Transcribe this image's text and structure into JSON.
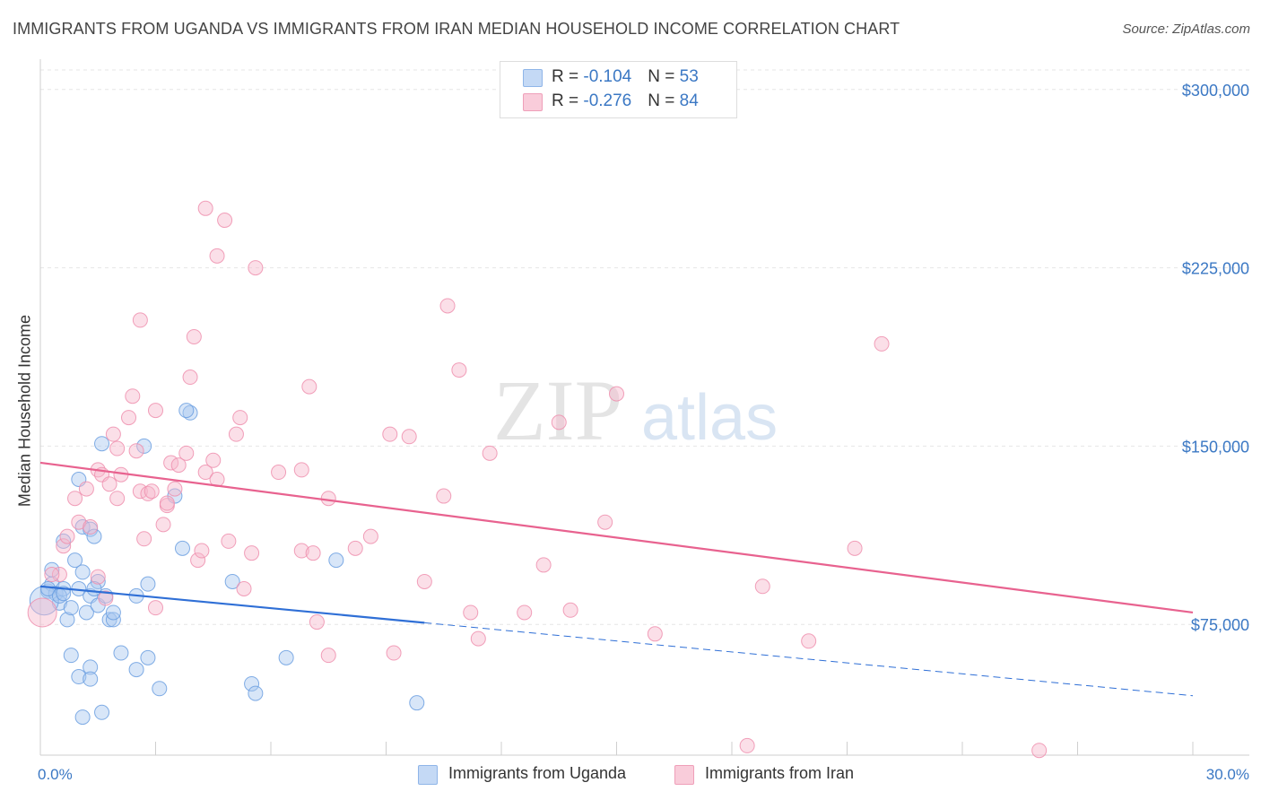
{
  "title": "IMMIGRANTS FROM UGANDA VS IMMIGRANTS FROM IRAN MEDIAN HOUSEHOLD INCOME CORRELATION CHART",
  "source": "Source: ZipAtlas.com",
  "watermark": {
    "zip": "ZIP",
    "atlas": "atlas"
  },
  "legend_box": {
    "rows": [
      {
        "r_label": "R = ",
        "r_value": "-0.104",
        "n_label": "N = ",
        "n_value": "53",
        "color": "#a9c8f0"
      },
      {
        "r_label": "R = ",
        "r_value": "-0.276",
        "n_label": "N = ",
        "n_value": "84",
        "color": "#f6b8cb"
      }
    ]
  },
  "bottom_legend": [
    {
      "label": "Immigrants from Uganda",
      "color": "#a9c8f0"
    },
    {
      "label": "Immigrants from Iran",
      "color": "#f6b8cb"
    }
  ],
  "chart_data": {
    "type": "scatter",
    "ylabel": "Median Household Income",
    "xlim": [
      0,
      30
    ],
    "ylim": [
      20000,
      315000
    ],
    "x_tick_labels": {
      "min": "0.0%",
      "max": "30.0%"
    },
    "y_ticks": [
      {
        "value": 75000,
        "label": "$75,000"
      },
      {
        "value": 150000,
        "label": "$150,000"
      },
      {
        "value": 225000,
        "label": "$225,000"
      },
      {
        "value": 300000,
        "label": "$300,000"
      }
    ],
    "grid": "horizontal dashed",
    "series": [
      {
        "name": "Immigrants from Uganda",
        "color": "#6b9fe0",
        "fill": "#a9c8f0",
        "trend": {
          "x": [
            0,
            10
          ],
          "y": [
            91000,
            75700
          ],
          "dashed_to": [
            30,
            45000
          ],
          "color": "#2f6fd6"
        },
        "points": [
          [
            0.2,
            89000
          ],
          [
            0.3,
            92000
          ],
          [
            0.4,
            88000
          ],
          [
            0.3,
            98000
          ],
          [
            0.5,
            84000
          ],
          [
            0.6,
            90000
          ],
          [
            0.6,
            110000
          ],
          [
            0.7,
            77000
          ],
          [
            0.8,
            82000
          ],
          [
            0.9,
            102000
          ],
          [
            1.0,
            90000
          ],
          [
            1.1,
            116000
          ],
          [
            0.8,
            62000
          ],
          [
            1.0,
            53000
          ],
          [
            1.1,
            36000
          ],
          [
            1.0,
            136000
          ],
          [
            1.1,
            97000
          ],
          [
            1.2,
            80000
          ],
          [
            1.3,
            87000
          ],
          [
            1.3,
            115000
          ],
          [
            1.3,
            57000
          ],
          [
            1.3,
            52000
          ],
          [
            1.4,
            112000
          ],
          [
            1.5,
            93000
          ],
          [
            1.4,
            90000
          ],
          [
            1.5,
            83000
          ],
          [
            1.6,
            38000
          ],
          [
            1.6,
            151000
          ],
          [
            1.7,
            87000
          ],
          [
            1.8,
            77000
          ],
          [
            1.9,
            77000
          ],
          [
            1.9,
            80000
          ],
          [
            2.1,
            63000
          ],
          [
            2.5,
            87000
          ],
          [
            2.5,
            56000
          ],
          [
            2.7,
            150000
          ],
          [
            2.8,
            61000
          ],
          [
            2.8,
            92000
          ],
          [
            3.1,
            48000
          ],
          [
            3.5,
            129000
          ],
          [
            3.7,
            107000
          ],
          [
            3.9,
            164000
          ],
          [
            3.8,
            165000
          ],
          [
            5.0,
            93000
          ],
          [
            5.5,
            50000
          ],
          [
            5.6,
            46000
          ],
          [
            6.4,
            61000
          ],
          [
            7.7,
            102000
          ],
          [
            9.8,
            42000
          ],
          [
            0.1,
            85000
          ],
          [
            0.2,
            90000
          ],
          [
            0.5,
            87000
          ],
          [
            0.6,
            88000
          ]
        ]
      },
      {
        "name": "Immigrants from Iran",
        "color": "#ee8fae",
        "fill": "#f6b8cb",
        "trend": {
          "x": [
            0,
            30
          ],
          "y": [
            143000,
            80000
          ],
          "color": "#e8628f"
        },
        "points": [
          [
            0.05,
            80000
          ],
          [
            0.5,
            96000
          ],
          [
            0.6,
            108000
          ],
          [
            0.7,
            112000
          ],
          [
            0.9,
            128000
          ],
          [
            1.0,
            118000
          ],
          [
            1.2,
            132000
          ],
          [
            1.3,
            116000
          ],
          [
            1.5,
            95000
          ],
          [
            1.5,
            140000
          ],
          [
            1.6,
            138000
          ],
          [
            1.7,
            86000
          ],
          [
            1.8,
            134000
          ],
          [
            1.9,
            155000
          ],
          [
            2.0,
            149000
          ],
          [
            2.0,
            128000
          ],
          [
            2.1,
            138000
          ],
          [
            2.3,
            162000
          ],
          [
            2.4,
            171000
          ],
          [
            2.5,
            148000
          ],
          [
            2.6,
            131000
          ],
          [
            2.7,
            111000
          ],
          [
            2.6,
            203000
          ],
          [
            2.8,
            130000
          ],
          [
            2.9,
            131000
          ],
          [
            3.0,
            82000
          ],
          [
            3.0,
            165000
          ],
          [
            3.2,
            117000
          ],
          [
            3.3,
            125000
          ],
          [
            3.3,
            126000
          ],
          [
            3.4,
            143000
          ],
          [
            3.5,
            132000
          ],
          [
            3.6,
            142000
          ],
          [
            3.8,
            147000
          ],
          [
            3.9,
            179000
          ],
          [
            4.0,
            196000
          ],
          [
            4.1,
            102000
          ],
          [
            4.2,
            106000
          ],
          [
            4.3,
            250000
          ],
          [
            4.3,
            139000
          ],
          [
            4.5,
            144000
          ],
          [
            4.6,
            136000
          ],
          [
            4.6,
            230000
          ],
          [
            4.8,
            245000
          ],
          [
            4.9,
            110000
          ],
          [
            5.1,
            155000
          ],
          [
            5.2,
            162000
          ],
          [
            5.3,
            90000
          ],
          [
            5.5,
            105000
          ],
          [
            5.6,
            225000
          ],
          [
            6.2,
            139000
          ],
          [
            6.8,
            106000
          ],
          [
            6.8,
            140000
          ],
          [
            7.0,
            175000
          ],
          [
            7.1,
            105000
          ],
          [
            7.2,
            76000
          ],
          [
            7.5,
            62000
          ],
          [
            7.5,
            128000
          ],
          [
            8.2,
            107000
          ],
          [
            8.6,
            112000
          ],
          [
            9.1,
            155000
          ],
          [
            9.2,
            63000
          ],
          [
            9.6,
            154000
          ],
          [
            10.0,
            93000
          ],
          [
            10.5,
            129000
          ],
          [
            10.6,
            209000
          ],
          [
            10.9,
            182000
          ],
          [
            11.2,
            80000
          ],
          [
            11.4,
            69000
          ],
          [
            11.7,
            147000
          ],
          [
            12.6,
            80000
          ],
          [
            13.1,
            100000
          ],
          [
            13.5,
            160000
          ],
          [
            13.8,
            81000
          ],
          [
            14.7,
            118000
          ],
          [
            15.0,
            172000
          ],
          [
            16.0,
            71000
          ],
          [
            18.4,
            24000
          ],
          [
            18.8,
            91000
          ],
          [
            20.0,
            68000
          ],
          [
            21.2,
            107000
          ],
          [
            21.9,
            193000
          ],
          [
            26.0,
            22000
          ],
          [
            0.3,
            96000
          ]
        ]
      }
    ]
  }
}
